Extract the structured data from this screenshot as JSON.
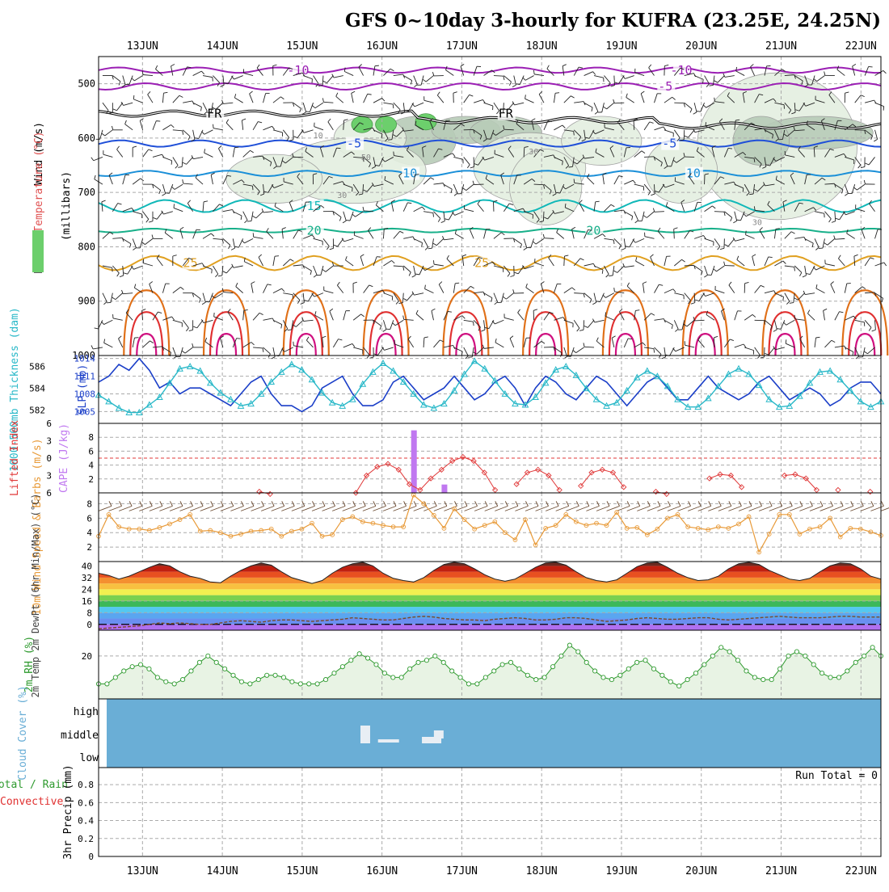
{
  "title": "GFS 0~10day 3-hourly for KUFRA (23.25E, 24.25N)",
  "colors": {
    "purple": "#9b1fb4",
    "black": "#000000",
    "blue": "#1f4fd8",
    "cyan_blue": "#1a8fd8",
    "teal": "#10b8b8",
    "green_teal": "#18b08a",
    "orange": "#e0a020",
    "dark_orange": "#e07018",
    "red": "#e03030",
    "magenta": "#d01080",
    "rh_light": "#e4efe0",
    "rh_mid": "#b8ccb8",
    "rh_dark": "#8fa78f",
    "rh_green": "#6ccf6c",
    "slp": "#1b3fc8",
    "thickness": "#28b8c8",
    "lifted_index": "#e03838",
    "cape": "#c078f0",
    "wind10m": "#e89a38",
    "rh2m": "#2e9a2e",
    "cloud": "#6aaed6"
  },
  "chart_data": [
    {
      "panel": "pressure-cross-section",
      "type": "heatmap",
      "ylabel_parts": [
        "Wind (m/s)",
        "Temperature (°C)",
        "RH (%)",
        "(millibars)"
      ],
      "x_ticks": [
        "13JUN",
        "14JUN",
        "15JUN",
        "16JUN",
        "17JUN",
        "18JUN",
        "19JUN",
        "20JUN",
        "21JUN",
        "22JUN"
      ],
      "y_ticks": [
        500,
        600,
        700,
        800,
        900,
        1000
      ],
      "ylim": [
        450,
        1000
      ],
      "temperature_contours": [
        {
          "label": "-10",
          "color": "purple",
          "level": 475
        },
        {
          "label": "-5",
          "color": "purple",
          "level": 505
        },
        {
          "label": "FR",
          "color": "black",
          "level": 555
        },
        {
          "label": "-5",
          "color": "blue",
          "level": 610
        },
        {
          "label": "10",
          "color": "cyan_blue",
          "level": 665
        },
        {
          "label": "15",
          "color": "teal",
          "level": 725
        },
        {
          "label": "20",
          "color": "green_teal",
          "level": 770
        },
        {
          "label": "25",
          "color": "orange",
          "level": 830
        }
      ],
      "rh_contour_labels": [
        "10",
        "30",
        "30",
        "50",
        "30"
      ]
    },
    {
      "panel": "slp-thickness",
      "type": "line",
      "ylabel_left": "1000-500mb Thickness (dam)",
      "ylabel_right": "SLP (mb)",
      "left_ticks": [
        586,
        584,
        582
      ],
      "right_ticks": [
        1014,
        1011,
        1008,
        1005
      ],
      "series": [
        {
          "name": "SLP (mb)",
          "values": [
            1010,
            1011,
            1013,
            1012,
            1014,
            1012,
            1009,
            1010,
            1008,
            1009,
            1009,
            1008,
            1007,
            1006,
            1008,
            1010,
            1011,
            1008,
            1006,
            1006,
            1005,
            1006,
            1009,
            1010,
            1011,
            1008,
            1006,
            1006,
            1007,
            1010,
            1011,
            1009,
            1007,
            1008,
            1009,
            1011,
            1009,
            1007,
            1008,
            1010,
            1011,
            1009,
            1006,
            1009,
            1011,
            1010,
            1008,
            1007,
            1009,
            1011,
            1010,
            1008,
            1006,
            1008,
            1010,
            1011,
            1009,
            1007,
            1007,
            1009,
            1011,
            1009,
            1008,
            1007,
            1008,
            1010,
            1011,
            1009,
            1007,
            1008,
            1009,
            1008,
            1006,
            1007,
            1009,
            1010,
            1010,
            1008
          ]
        },
        {
          "name": "1000-500mb Thickness (dam)",
          "values": [
            583.4,
            582.8,
            582.2,
            581.8,
            581.8,
            582.5,
            583.2,
            584.5,
            585.8,
            586.0,
            585.6,
            584.5,
            583.6,
            583.0,
            582.4,
            582.6,
            583.5,
            584.6,
            585.5,
            586.2,
            585.7,
            584.8,
            583.6,
            582.7,
            582.4,
            583.0,
            584.4,
            585.5,
            586.3,
            585.6,
            584.6,
            583.5,
            582.5,
            582.2,
            582.6,
            583.8,
            585.3,
            586.5,
            585.8,
            584.7,
            583.5,
            582.6,
            582.5,
            583.2,
            584.5,
            585.7,
            586.0,
            585.2,
            584.0,
            583.0,
            582.4,
            582.7,
            583.8,
            585.0,
            585.6,
            585.1,
            584.2,
            583.0,
            582.3,
            582.3,
            583.1,
            584.2,
            585.3,
            585.8,
            585.3,
            584.3,
            583.0,
            582.3,
            582.4,
            583.3,
            584.5,
            585.5,
            585.6,
            584.8,
            583.8,
            582.8,
            582.3,
            582.8
          ]
        }
      ]
    },
    {
      "panel": "lifted-index-cape",
      "type": "bar",
      "ylabel_left": "Lifted Index",
      "ylabel_right": "CAPE (J/kg)",
      "left_ticks": [
        -6,
        -3,
        0,
        3,
        6
      ],
      "right_ticks": [
        8,
        6,
        4,
        2
      ],
      "series": [
        {
          "name": "Lifted Index",
          "values": [
            null,
            null,
            null,
            null,
            null,
            null,
            null,
            null,
            null,
            null,
            null,
            null,
            null,
            null,
            null,
            5.8,
            6.2,
            null,
            null,
            null,
            null,
            null,
            null,
            null,
            6,
            3,
            1.5,
            1,
            2,
            4.5,
            5.5,
            3.5,
            2,
            0.5,
            -0.2,
            0.5,
            2.5,
            5.5,
            null,
            4.5,
            2.5,
            2,
            3,
            5.5,
            null,
            4.8,
            2.5,
            2,
            2.5,
            5,
            null,
            null,
            5.8,
            6.2,
            null,
            null,
            null,
            3.5,
            2.8,
            3,
            5,
            null,
            null,
            null,
            3,
            2.8,
            3.5,
            5.5,
            null,
            5.5,
            null,
            null,
            5.8,
            null
          ]
        },
        {
          "name": "CAPE (J/kg)",
          "values": [
            0,
            0,
            0,
            0,
            0,
            0,
            0,
            0,
            0,
            0,
            0,
            0,
            0,
            0,
            0,
            0,
            0,
            0,
            0,
            0,
            0,
            0,
            0,
            0,
            0,
            0,
            0,
            0,
            0,
            0,
            0,
            9,
            0,
            0,
            1.2,
            0,
            0,
            0,
            0,
            0,
            0,
            0,
            0,
            0,
            0,
            0,
            0,
            0,
            0,
            0,
            0,
            0,
            0,
            0,
            0,
            0,
            0,
            0,
            0,
            0,
            0,
            0,
            0,
            0,
            0,
            0,
            0,
            0,
            0,
            0,
            0,
            0,
            0,
            0,
            0,
            0,
            0,
            0
          ]
        }
      ]
    },
    {
      "panel": "wind-10m",
      "type": "line",
      "ylabel": "10m Wind Speed & Barbs (m/s)",
      "y_ticks": [
        8,
        6,
        4,
        2
      ],
      "ylim": [
        0,
        9.5
      ],
      "series": [
        {
          "name": "10m Wind Speed",
          "values": [
            3.5,
            6.5,
            4.8,
            4.5,
            4.5,
            4.3,
            4.7,
            5.2,
            5.8,
            6.5,
            4.2,
            4.3,
            4,
            3.5,
            3.8,
            4.2,
            4.3,
            4.5,
            3.5,
            4.2,
            4.5,
            5.3,
            3.5,
            3.7,
            5.8,
            6.2,
            5.5,
            5.3,
            5,
            4.8,
            4.8,
            9.2,
            8,
            6.4,
            4.6,
            7.3,
            5.8,
            4.5,
            5,
            5.5,
            4,
            3,
            5.8,
            2.3,
            4.6,
            5,
            6.5,
            5.5,
            5,
            5.3,
            5,
            6.8,
            4.6,
            4.7,
            3.7,
            4.5,
            6,
            6.5,
            4.8,
            4.6,
            4.4,
            4.8,
            4.6,
            5.2,
            6.2,
            1.3,
            3.8,
            6.5,
            6.5,
            3.8,
            4.5,
            4.8,
            6,
            3.4,
            4.6,
            4.5,
            4.1,
            3.6
          ]
        }
      ]
    },
    {
      "panel": "temp-2m",
      "type": "area",
      "ylabel": "2m Temp 2m DewPt (6hr Min/Max) (°C)",
      "y_ticks": [
        40,
        32,
        24,
        16,
        8,
        0
      ],
      "ylim": [
        -4,
        43
      ],
      "series": [
        {
          "name": "2m Temp",
          "values": [
            35,
            33.5,
            31,
            33,
            36,
            39,
            41.5,
            40,
            36,
            33,
            31.5,
            29,
            28.5,
            33,
            37,
            40,
            42,
            40.5,
            36,
            32,
            30,
            28,
            30,
            35,
            39,
            41.5,
            42.5,
            40,
            35,
            31.5,
            30,
            29,
            32,
            37,
            41,
            42.5,
            41.5,
            38,
            34,
            31,
            29.5,
            31,
            35,
            39,
            42,
            42.5,
            40.5,
            36,
            32,
            30,
            29,
            30.5,
            35,
            39.5,
            42,
            42.5,
            39,
            35,
            32,
            30,
            30.5,
            33,
            38,
            41.5,
            42.5,
            41,
            37,
            34,
            31,
            30,
            31.5,
            36,
            40,
            42,
            41.5,
            38,
            33,
            31
          ]
        },
        {
          "name": "2m DewPt",
          "values": [
            -3,
            -2.5,
            -2,
            -1.5,
            -1,
            0,
            1,
            0.5,
            1,
            0.5,
            0,
            0,
            1,
            2,
            2.5,
            2,
            1.5,
            2.5,
            3,
            3,
            2.5,
            2,
            2.5,
            3,
            3.5,
            4.5,
            4,
            3.5,
            3,
            3,
            4,
            5,
            5.5,
            5,
            4,
            3.5,
            3,
            3,
            2.5,
            3.5,
            4,
            4.5,
            4,
            3,
            3,
            3.5,
            4.5,
            4.5,
            4,
            3,
            2,
            2.5,
            3,
            4,
            4.5,
            4,
            3.5,
            3.5,
            4,
            4.5,
            4.5,
            3.5,
            3,
            3.5,
            4,
            4.5,
            5,
            5.5,
            5,
            4.5,
            4.5,
            4.5,
            5,
            5.5,
            5.5,
            5,
            5,
            5
          ]
        }
      ]
    },
    {
      "panel": "rh-2m",
      "type": "area",
      "ylabel": "2m RH (%)",
      "y_ticks": [
        20
      ],
      "ylim": [
        0,
        32
      ],
      "series": [
        {
          "name": "2m RH",
          "values": [
            7,
            7,
            10,
            13,
            15,
            16,
            14,
            10,
            8,
            7,
            9,
            13,
            17,
            20,
            17,
            14,
            11,
            8,
            7,
            9,
            11,
            11,
            10,
            8,
            7,
            7,
            7,
            9,
            12,
            15,
            18,
            21,
            19,
            16,
            12,
            10,
            10,
            14,
            17,
            18,
            20,
            17,
            13,
            10,
            7,
            7,
            10,
            13,
            16,
            17,
            14,
            11,
            9,
            10,
            15,
            20,
            25,
            22,
            17,
            13,
            10,
            9,
            11,
            14,
            17,
            18,
            14,
            11,
            8,
            6,
            9,
            12,
            16,
            20,
            24,
            22,
            18,
            13,
            10,
            9,
            9,
            14,
            20,
            22,
            20,
            16,
            12,
            10,
            10,
            13,
            17,
            20,
            24,
            20
          ]
        }
      ]
    },
    {
      "panel": "cloud-cover",
      "type": "heatmap",
      "ylabel": "Cloud Cover (%)",
      "y_ticks": [
        "high",
        "middle",
        "low"
      ],
      "clear_times": [
        3.8,
        5.3,
        5.6,
        6.5,
        6.7
      ]
    },
    {
      "panel": "precip",
      "type": "bar",
      "ylabel_parts": [
        "Total / Rain",
        "Convective",
        "3hr Precip (mm)"
      ],
      "y_ticks": [
        "0.8",
        "0.6",
        "0.4",
        "0.2",
        "0"
      ],
      "ylim": [
        0,
        0.9
      ],
      "run_total": "Run Total = 0",
      "values": []
    }
  ]
}
